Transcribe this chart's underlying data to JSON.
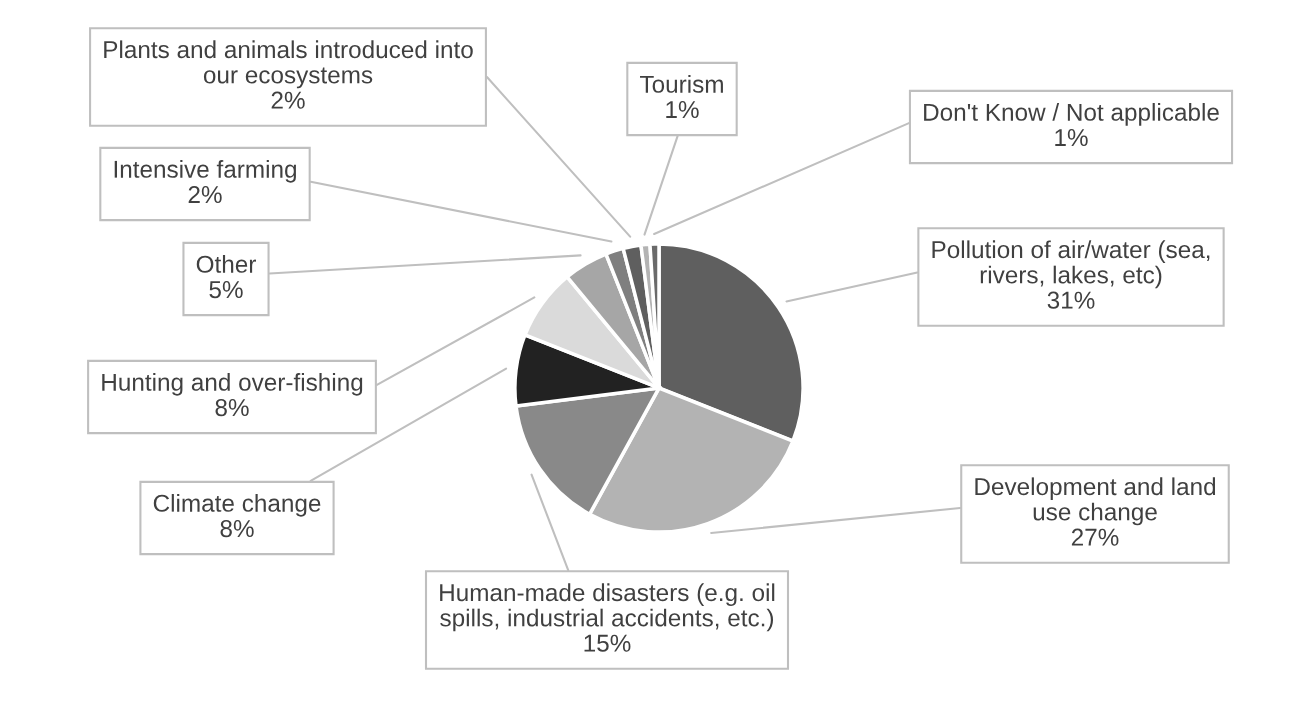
{
  "chart_data": {
    "type": "pie",
    "categories": [
      "Pollution of air/water (sea,\nrivers, lakes, etc)",
      "Development and land\nuse change",
      "Human-made disasters (e.g. oil\nspills, industrial accidents, etc.)",
      "Climate change",
      "Hunting and over-fishing",
      "Other",
      "Intensive farming",
      "Plants and animals introduced into\nour ecosystems",
      "Tourism",
      "Don't Know / Not applicable"
    ],
    "values": [
      31,
      27,
      15,
      8,
      8,
      5,
      2,
      2,
      1,
      1
    ],
    "value_labels": [
      "31%",
      "27%",
      "15%",
      "8%",
      "8%",
      "5%",
      "2%",
      "2%",
      "1%",
      "1%"
    ],
    "colors": [
      "#5f5f5f",
      "#b3b3b3",
      "#898989",
      "#222222",
      "#dadada",
      "#a6a6a6",
      "#7f7f7f",
      "#5f5f5f",
      "#b3b3b3",
      "#6a6a6a"
    ]
  }
}
